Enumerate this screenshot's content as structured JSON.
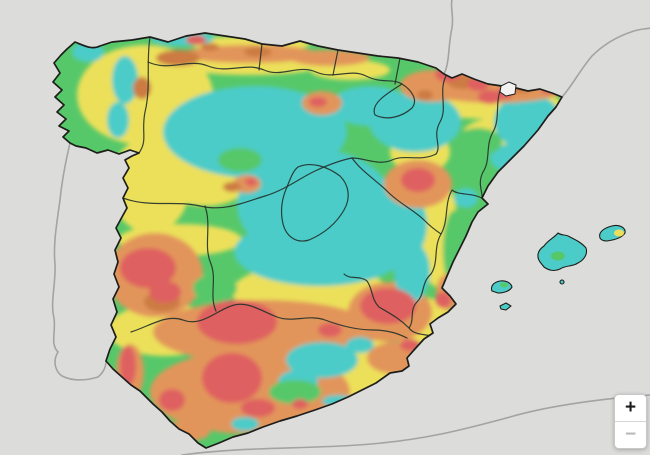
{
  "map": {
    "region": "Spain",
    "description": "Choropleth heat raster over Spain with autonomous-community borders, Balearic Islands, and neighbouring coastlines",
    "background_color": "#dcdcda",
    "neighbor_coastline_color": "#a3a3a1",
    "country_border_color": "#1d1d1b",
    "region_border_color": "#24302a",
    "palette": {
      "cyan": "#4cccc8",
      "green": "#57c869",
      "yellow": "#ece05a",
      "orange": "#e2955a",
      "darkorange": "#cc7b42",
      "red": "#df6060",
      "enclave_white": "#f2f2f0"
    },
    "heat_blobs": [
      [
        "yellow",
        145,
        95,
        68,
        50
      ],
      [
        "yellow",
        150,
        185,
        40,
        48
      ],
      [
        "yellow",
        205,
        180,
        45,
        26
      ],
      [
        "yellow",
        180,
        240,
        62,
        16
      ],
      [
        "yellow",
        250,
        44,
        60,
        8
      ],
      [
        "yellow",
        250,
        66,
        70,
        9
      ],
      [
        "yellow",
        350,
        70,
        40,
        10
      ],
      [
        "yellow",
        490,
        104,
        72,
        15
      ],
      [
        "yellow",
        505,
        133,
        42,
        16
      ],
      [
        "yellow",
        420,
        152,
        30,
        22
      ],
      [
        "yellow",
        438,
        232,
        20,
        55
      ],
      [
        "yellow",
        310,
        292,
        78,
        28
      ],
      [
        "yellow",
        165,
        330,
        58,
        26
      ],
      [
        "yellow",
        300,
        352,
        92,
        32
      ],
      [
        "yellow",
        368,
        392,
        62,
        24
      ],
      [
        "yellow",
        415,
        320,
        38,
        24
      ],
      [
        "cyan",
        255,
        132,
        92,
        46
      ],
      [
        "cyan",
        315,
        205,
        78,
        56
      ],
      [
        "cyan",
        320,
        252,
        86,
        34
      ],
      [
        "cyan",
        385,
        225,
        42,
        46
      ],
      [
        "cyan",
        415,
        122,
        46,
        30
      ],
      [
        "cyan",
        370,
        106,
        40,
        20
      ],
      [
        "cyan",
        528,
        122,
        34,
        28
      ],
      [
        "cyan",
        510,
        158,
        20,
        14
      ],
      [
        "cyan",
        466,
        198,
        12,
        10
      ],
      [
        "cyan",
        125,
        80,
        13,
        24
      ],
      [
        "cyan",
        118,
        120,
        11,
        18
      ],
      [
        "cyan",
        88,
        52,
        16,
        10
      ],
      [
        "cyan",
        182,
        38,
        32,
        8
      ],
      [
        "green",
        478,
        142,
        24,
        14
      ],
      [
        "green",
        455,
        250,
        12,
        40
      ],
      [
        "green",
        240,
        160,
        22,
        12
      ],
      [
        "orange",
        495,
        85,
        78,
        18
      ],
      [
        "orange",
        432,
        86,
        32,
        16
      ],
      [
        "orange",
        250,
        54,
        68,
        9
      ],
      [
        "orange",
        330,
        58,
        40,
        8
      ],
      [
        "orange",
        322,
        103,
        20,
        12
      ],
      [
        "orange",
        418,
        184,
        34,
        24
      ],
      [
        "orange",
        247,
        184,
        14,
        9
      ],
      [
        "orange",
        155,
        275,
        48,
        42
      ],
      [
        "orange",
        265,
        332,
        112,
        32
      ],
      [
        "orange",
        250,
        392,
        100,
        42
      ],
      [
        "orange",
        390,
        312,
        42,
        30
      ],
      [
        "orange",
        395,
        358,
        28,
        16
      ],
      [
        "orange",
        130,
        372,
        14,
        28
      ],
      [
        "orange",
        448,
        292,
        12,
        18
      ],
      [
        "orange",
        180,
        432,
        30,
        10
      ],
      [
        "darkorange",
        178,
        58,
        22,
        8
      ],
      [
        "darkorange",
        142,
        88,
        9,
        11
      ],
      [
        "darkorange",
        258,
        52,
        14,
        5
      ],
      [
        "darkorange",
        210,
        47,
        9,
        4
      ],
      [
        "darkorange",
        462,
        82,
        14,
        7
      ],
      [
        "darkorange",
        520,
        86,
        16,
        7
      ],
      [
        "darkorange",
        425,
        95,
        8,
        5
      ],
      [
        "darkorange",
        232,
        187,
        9,
        5
      ],
      [
        "darkorange",
        162,
        302,
        18,
        10
      ],
      [
        "cyan",
        322,
        360,
        36,
        18
      ],
      [
        "cyan",
        298,
        382,
        20,
        12
      ],
      [
        "cyan",
        360,
        345,
        14,
        8
      ],
      [
        "cyan",
        412,
        272,
        18,
        30
      ],
      [
        "cyan",
        245,
        424,
        14,
        7
      ],
      [
        "cyan",
        338,
        401,
        16,
        6
      ],
      [
        "green",
        215,
        288,
        22,
        14
      ],
      [
        "green",
        295,
        392,
        26,
        12
      ],
      [
        "red",
        448,
        74,
        13,
        8
      ],
      [
        "red",
        478,
        84,
        11,
        7
      ],
      [
        "red",
        505,
        93,
        8,
        6
      ],
      [
        "red",
        490,
        97,
        12,
        7
      ],
      [
        "red",
        549,
        89,
        8,
        5
      ],
      [
        "red",
        196,
        40,
        10,
        5
      ],
      [
        "red",
        277,
        40,
        9,
        5
      ],
      [
        "red",
        318,
        102,
        9,
        5
      ],
      [
        "red",
        418,
        180,
        17,
        12
      ],
      [
        "red",
        251,
        182,
        6,
        4
      ],
      [
        "red",
        148,
        268,
        28,
        20
      ],
      [
        "red",
        165,
        292,
        16,
        11
      ],
      [
        "red",
        237,
        322,
        40,
        22
      ],
      [
        "red",
        232,
        378,
        30,
        25
      ],
      [
        "red",
        258,
        408,
        17,
        9
      ],
      [
        "red",
        172,
        400,
        13,
        11
      ],
      [
        "red",
        128,
        366,
        8,
        20
      ],
      [
        "red",
        388,
        306,
        28,
        18
      ],
      [
        "red",
        330,
        330,
        12,
        7
      ],
      [
        "red",
        300,
        404,
        8,
        5
      ],
      [
        "red",
        443,
        300,
        8,
        8
      ],
      [
        "red",
        410,
        345,
        10,
        6
      ]
    ]
  },
  "zoom_control": {
    "zoom_in_label": "+",
    "zoom_out_label": "−",
    "zoom_out_disabled": true
  }
}
